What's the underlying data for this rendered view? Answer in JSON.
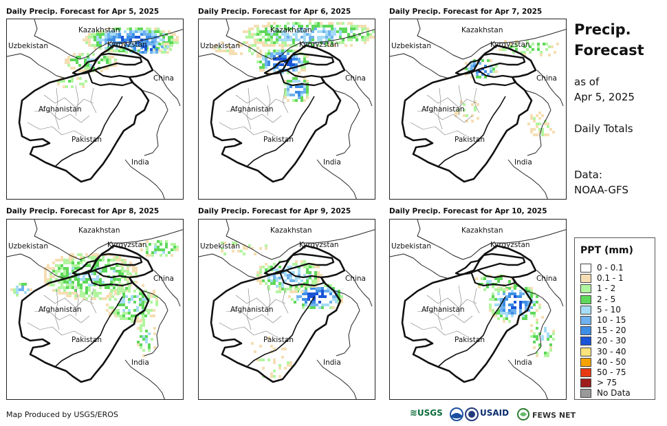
{
  "panels": [
    {
      "title": "Daily Precip. Forecast for Apr 5, 2025",
      "pattern": "north"
    },
    {
      "title": "Daily Precip. Forecast for Apr 6, 2025",
      "pattern": "north-wide"
    },
    {
      "title": "Daily Precip. Forecast for Apr 7, 2025",
      "pattern": "light"
    },
    {
      "title": "Daily Precip. Forecast for Apr 8, 2025",
      "pattern": "central"
    },
    {
      "title": "Daily Precip. Forecast for Apr 9, 2025",
      "pattern": "east"
    },
    {
      "title": "Daily Precip. Forecast for Apr 10, 2025",
      "pattern": "east-light"
    }
  ],
  "map_labels": {
    "kazakhstan": "Kazakhstan",
    "uzbekistan": "Uzbekistan",
    "kyrgyzstan": "Kyrgyzstan",
    "china": "China",
    "afghanistan": "Afghanistan",
    "pakistan": "Pakistan",
    "india": "India"
  },
  "side": {
    "title_line1": "Precip.",
    "title_line2": "Forecast",
    "asof_line1": "as of",
    "asof_line2": "Apr 5, 2025",
    "daily": "Daily Totals",
    "data_line1": "Data:",
    "data_line2": "NOAA-GFS"
  },
  "legend": {
    "title": "PPT (mm)",
    "items": [
      {
        "label": "0 - 0.1",
        "color": "#ffffff"
      },
      {
        "label": "0.1 - 1",
        "color": "#f5deb3"
      },
      {
        "label": "1 - 2",
        "color": "#b2f5a0"
      },
      {
        "label": "2 - 5",
        "color": "#5ed85a"
      },
      {
        "label": "5 - 10",
        "color": "#a6dcf5"
      },
      {
        "label": "10 - 15",
        "color": "#6fb2ee"
      },
      {
        "label": "15 - 20",
        "color": "#3d8ee6"
      },
      {
        "label": "20 - 30",
        "color": "#1a55d8"
      },
      {
        "label": "30 - 40",
        "color": "#fbe27a"
      },
      {
        "label": "40 - 50",
        "color": "#f5a300"
      },
      {
        "label": "50 - 75",
        "color": "#e83a12"
      },
      {
        "label": "> 75",
        "color": "#9e1c1c"
      },
      {
        "label": "No Data",
        "color": "#999999"
      }
    ]
  },
  "footer": {
    "credit": "Map Produced by USGS/EROS"
  },
  "logos": {
    "usgs": "USGS",
    "usaid": "USAID",
    "fews": "FEWS NET"
  }
}
